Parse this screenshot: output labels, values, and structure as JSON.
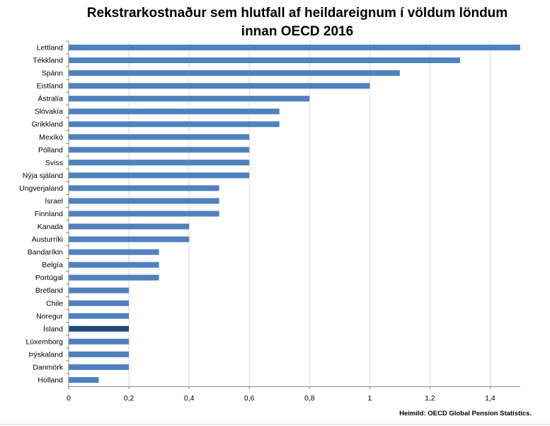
{
  "chart_data": {
    "type": "bar",
    "orientation": "horizontal",
    "title_lines": [
      "Rekstrarkostnaður sem hlutfall af heildareignum í völdum löndum",
      "innan OECD 2016"
    ],
    "categories": [
      "Lettland",
      "Tékkland",
      "Spánn",
      "Eistland",
      "Ástralía",
      "Slóvakía",
      "Grikkland",
      "Mexíkó",
      "Pólland",
      "Sviss",
      "Nýja sjáland",
      "Ungverjaland",
      "Ísrael",
      "Finnland",
      "Kanada",
      "Austurríki",
      "Bandaríkin",
      "Belgía",
      "Portúgal",
      "Bretland",
      "Chile",
      "Noregur",
      "Ísland",
      "Lúxemborg",
      "Þýskaland",
      "Danmörk",
      "Holland"
    ],
    "values": [
      1.5,
      1.3,
      1.1,
      1.0,
      0.8,
      0.7,
      0.7,
      0.6,
      0.6,
      0.6,
      0.6,
      0.5,
      0.5,
      0.5,
      0.4,
      0.4,
      0.3,
      0.3,
      0.3,
      0.2,
      0.2,
      0.2,
      0.2,
      0.2,
      0.2,
      0.2,
      0.1
    ],
    "highlight_category": "Ísland",
    "xlim": [
      0,
      1.5
    ],
    "x_ticks": [
      "0",
      "0,2",
      "0,4",
      "0,6",
      "0,8",
      "1",
      "1,2",
      "1,4"
    ],
    "x_tick_values": [
      0,
      0.2,
      0.4,
      0.6,
      0.8,
      1.0,
      1.2,
      1.4
    ],
    "grid": true,
    "colors": {
      "bar": "#4f81bd",
      "highlight": "#1f497d",
      "grid": "#d9d9d9",
      "axis": "#868686"
    }
  },
  "source": "Heimild: OECD Global Pension Statistics."
}
